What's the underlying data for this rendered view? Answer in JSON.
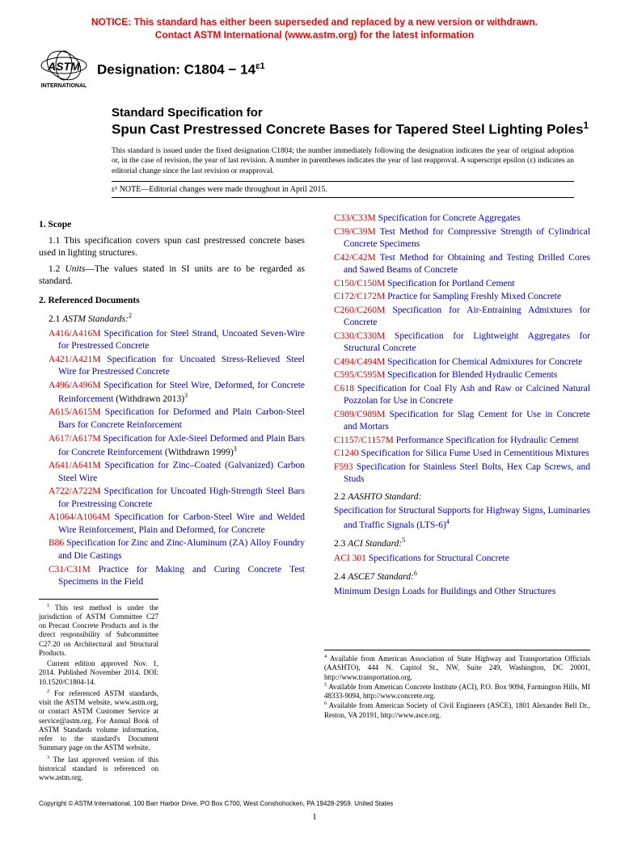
{
  "notice": {
    "line1": "NOTICE: This standard has either been superseded and replaced by a new version or withdrawn.",
    "line2": "Contact ASTM International (www.astm.org) for the latest information"
  },
  "logo": {
    "top": "ASTM",
    "bottom": "INTERNATIONAL"
  },
  "designation": {
    "label": "Designation: C1804 − 14",
    "eps": "ɛ1"
  },
  "title": {
    "line1": "Standard Specification for",
    "line2": "Spun Cast Prestressed Concrete Bases for Tapered Steel Lighting Poles",
    "sup": "1"
  },
  "issuance": "This standard is issued under the fixed designation C1804; the number immediately following the designation indicates the year of original adoption or, in the case of revision, the year of last revision. A number in parentheses indicates the year of last reapproval. A superscript epsilon (ɛ) indicates an editorial change since the last revision or reapproval.",
  "noteBox": "ɛ¹ NOTE—Editorial changes were made throughout in April 2015.",
  "sections": {
    "scope": {
      "head": "1. Scope",
      "p1": "1.1 This specification covers spun cast prestressed concrete bases used in lighting structures.",
      "p2_a": "1.2 ",
      "p2_b": "Units",
      "p2_c": "—The values stated in SI units are to be regarded as standard."
    },
    "refdocs": {
      "head": "2. Referenced Documents",
      "sub21_a": "2.1 ",
      "sub21_b": "ASTM Standards:",
      "sub21_sup": "2",
      "col1": [
        {
          "code": "A416/A416M",
          "text": " Specification for Steel Strand, Uncoated Seven-Wire for Prestressed Concrete"
        },
        {
          "code": "A421/A421M",
          "text": " Specification for Uncoated Stress-Relieved Steel Wire for Prestressed Concrete"
        },
        {
          "code": "A496/A496M",
          "text": " Specification for Steel Wire, Deformed, for Concrete Reinforcement",
          "suffix": " (Withdrawn 2013)",
          "sup": "3"
        },
        {
          "code": "A615/A615M",
          "text": " Specification for Deformed and Plain Carbon-Steel Bars for Concrete Reinforcement"
        },
        {
          "code": "A617/A617M",
          "text": " Specification for Axle-Steel Deformed and Plain Bars for Concrete Reinforcement",
          "suffix": " (Withdrawn 1999)",
          "sup": "3"
        },
        {
          "code": "A641/A641M",
          "text": " Specification for Zinc–Coated (Galvanized) Carbon Steel Wire"
        },
        {
          "code": "A722/A722M",
          "text": " Specification for Uncoated High-Strength Steel Bars for Prestressing Concrete"
        },
        {
          "code": "A1064/A1064M",
          "text": " Specification for Carbon-Steel Wire and Welded Wire Reinforcement, Plain and Deformed, for Concrete"
        },
        {
          "code": "B86",
          "text": " Specification for Zinc and Zinc-Aluminum (ZA) Alloy Foundry and Die Castings"
        },
        {
          "code": "C31/C31M",
          "text": " Practice for Making and Curing Concrete Test Specimens in the Field"
        }
      ],
      "col2": [
        {
          "code": "C33/C33M",
          "text": " Specification for Concrete Aggregates"
        },
        {
          "code": "C39/C39M",
          "text": " Test Method for Compressive Strength of Cylindrical Concrete Specimens"
        },
        {
          "code": "C42/C42M",
          "text": " Test Method for Obtaining and Testing Drilled Cores and Sawed Beams of Concrete"
        },
        {
          "code": "C150/C150M",
          "text": " Specification for Portland Cement"
        },
        {
          "code": "C172/C172M",
          "text": " Practice for Sampling Freshly Mixed Concrete"
        },
        {
          "code": "C260/C260M",
          "text": " Specification for Air-Entraining Admixtures for Concrete"
        },
        {
          "code": "C330/C330M",
          "text": " Specification for Lightweight Aggregates for Structural Concrete"
        },
        {
          "code": "C494/C494M",
          "text": " Specification for Chemical Admixtures for Concrete"
        },
        {
          "code": "C595/C595M",
          "text": " Specification for Blended Hydraulic Cements"
        },
        {
          "code": "C618",
          "text": " Specification for Coal Fly Ash and Raw or Calcined Natural Pozzolan for Use in Concrete"
        },
        {
          "code": "C989/C989M",
          "text": " Specification for Slag Cement for Use in Concrete and Mortars"
        },
        {
          "code": "C1157/C1157M",
          "text": " Performance Specification for Hydraulic Cement"
        },
        {
          "code": "C1240",
          "text": " Specification for Silica Fume Used in Cementitious Mixtures"
        },
        {
          "code": "F593",
          "text": " Specification for Stainless Steel Bolts, Hex Cap Screws, and Studs"
        }
      ],
      "sub22_a": "2.2 ",
      "sub22_b": "AASHTO Standard:",
      "aashto": "Specification for Structural Supports for Highway Signs, Luminaries and Traffic Signals (LTS-6)",
      "aashto_sup": "4",
      "sub23_a": "2.3 ",
      "sub23_b": "ACI Standard:",
      "sub23_sup": "5",
      "aci_code": "ACI 301",
      "aci_text": " Specifications for Structural Concrete",
      "sub24_a": "2.4 ",
      "sub24_b": "ASCE7 Standard:",
      "sub24_sup": "6",
      "asce": "Minimum Design Loads for Buildings and Other Structures"
    }
  },
  "footnotesLeft": [
    {
      "sup": "1",
      "text": " This test method is under the jurisdiction of ASTM Committee C27 on Precast Concrete Products and is the direct responsibility of Subcommittee C27.20 on Architectural and Structural Products."
    },
    {
      "text": "Current edition approved Nov. 1, 2014. Published November 2014. DOI: 10.1520/C1804-14."
    },
    {
      "sup": "2",
      "text": " For referenced ASTM standards, visit the ASTM website, www.astm.org, or contact ASTM Customer Service at service@astm.org. For Annual Book of ASTM Standards volume information, refer to the standard's Document Summary page on the ASTM website."
    },
    {
      "sup": "3",
      "text": " The last approved version of this historical standard is referenced on www.astm.org."
    }
  ],
  "footnotesRight": [
    {
      "sup": "4",
      "text": " Available from American Association of State Highway and Transportation Officials (AASHTO), 444 N. Capitol St., NW, Suite 249, Washington, DC 20001, http://www.transportation.org."
    },
    {
      "sup": "5",
      "text": " Available from American Concrete Institute (ACI), P.O. Box 9094, Farmington Hills, MI 48333-9094, http://www.concrete.org."
    },
    {
      "sup": "6",
      "text": " Available from American Society of Civil Engineers (ASCE), 1801 Alexander Bell Dr., Reston, VA 20191, http://www.asce.org."
    }
  ],
  "copyright": "Copyright © ASTM International, 100 Barr Harbor Drive, PO Box C700, West Conshohocken, PA 19428-2959. United States",
  "pageNum": "1"
}
